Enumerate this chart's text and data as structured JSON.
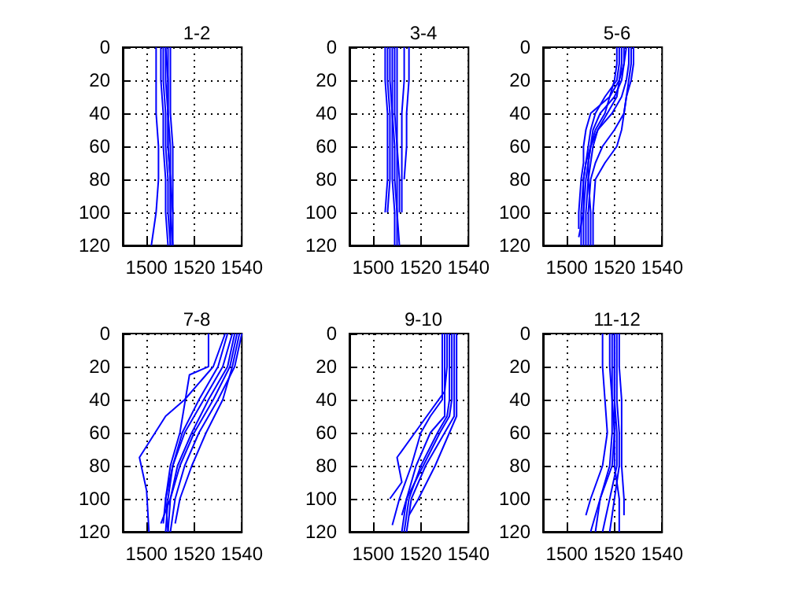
{
  "chart_data": [
    {
      "type": "line",
      "title": "1-2",
      "xlim": [
        1490,
        1540
      ],
      "ylim": [
        120,
        0
      ],
      "xticks": [
        1500,
        1520,
        1540
      ],
      "yticks": [
        0,
        20,
        40,
        60,
        80,
        100,
        120
      ],
      "grid": true,
      "series": [
        {
          "color": "#0000ff",
          "x": [
            1507,
            1507,
            1508,
            1508,
            1509,
            1509,
            1510
          ],
          "values": [
            0,
            20,
            40,
            60,
            80,
            100,
            120
          ]
        },
        {
          "color": "#0000ff",
          "x": [
            1508,
            1508,
            1509,
            1509,
            1510,
            1510,
            1511
          ],
          "values": [
            0,
            20,
            40,
            60,
            80,
            100,
            120
          ]
        },
        {
          "color": "#0000ff",
          "x": [
            1509,
            1509,
            1509,
            1510,
            1510,
            1511,
            1511
          ],
          "values": [
            0,
            20,
            40,
            60,
            80,
            100,
            120
          ]
        },
        {
          "color": "#0000ff",
          "x": [
            1506,
            1506,
            1507,
            1507,
            1508,
            1508,
            1509
          ],
          "values": [
            0,
            20,
            40,
            60,
            80,
            100,
            120
          ]
        },
        {
          "color": "#0000ff",
          "x": [
            1510,
            1510,
            1510,
            1511,
            1511,
            1511
          ],
          "values": [
            0,
            20,
            40,
            60,
            80,
            100
          ]
        },
        {
          "color": "#0000ff",
          "x": [
            1504,
            1504,
            1504,
            1505,
            1505,
            1504,
            1502
          ],
          "values": [
            0,
            20,
            40,
            60,
            80,
            100,
            120
          ]
        },
        {
          "color": "#0000ff",
          "x": [
            1508,
            1509,
            1509,
            1509,
            1510,
            1510,
            1510
          ],
          "values": [
            0,
            20,
            40,
            60,
            80,
            100,
            120
          ]
        }
      ]
    },
    {
      "type": "line",
      "title": "3-4",
      "xlim": [
        1490,
        1540
      ],
      "ylim": [
        120,
        0
      ],
      "xticks": [
        1500,
        1520,
        1540
      ],
      "yticks": [
        0,
        20,
        40,
        60,
        80,
        100,
        120
      ],
      "grid": true,
      "series": [
        {
          "color": "#0000ff",
          "x": [
            1506,
            1506,
            1507,
            1507,
            1507,
            1506
          ],
          "values": [
            0,
            20,
            40,
            60,
            80,
            100
          ]
        },
        {
          "color": "#0000ff",
          "x": [
            1507,
            1507,
            1508,
            1508,
            1508,
            1509,
            1509
          ],
          "values": [
            0,
            20,
            40,
            60,
            80,
            100,
            120
          ]
        },
        {
          "color": "#0000ff",
          "x": [
            1508,
            1508,
            1508,
            1509,
            1509,
            1510,
            1510
          ],
          "values": [
            0,
            20,
            40,
            60,
            80,
            100,
            120
          ]
        },
        {
          "color": "#0000ff",
          "x": [
            1509,
            1509,
            1509,
            1510,
            1510,
            1510,
            1511
          ],
          "values": [
            0,
            20,
            40,
            60,
            80,
            100,
            120
          ]
        },
        {
          "color": "#0000ff",
          "x": [
            1510,
            1510,
            1510,
            1510,
            1511,
            1511
          ],
          "values": [
            0,
            20,
            40,
            60,
            80,
            100
          ]
        },
        {
          "color": "#0000ff",
          "x": [
            1515,
            1515,
            1514,
            1514,
            1513
          ],
          "values": [
            0,
            20,
            40,
            60,
            80
          ]
        },
        {
          "color": "#0000ff",
          "x": [
            1513,
            1513,
            1512,
            1512,
            1512,
            1512
          ],
          "values": [
            0,
            20,
            40,
            60,
            80,
            100
          ]
        },
        {
          "color": "#0000ff",
          "x": [
            1505,
            1505,
            1506,
            1506,
            1506,
            1505
          ],
          "values": [
            0,
            20,
            40,
            60,
            80,
            100
          ]
        }
      ]
    },
    {
      "type": "line",
      "title": "5-6",
      "xlim": [
        1490,
        1540
      ],
      "ylim": [
        120,
        0
      ],
      "xticks": [
        1500,
        1520,
        1540
      ],
      "yticks": [
        0,
        20,
        40,
        60,
        80,
        100,
        120
      ],
      "grid": true,
      "series": [
        {
          "color": "#0000ff",
          "x": [
            1522,
            1522,
            1521,
            1516,
            1512,
            1510,
            1509,
            1508,
            1507,
            1506,
            1506
          ],
          "values": [
            0,
            10,
            20,
            30,
            40,
            50,
            60,
            70,
            80,
            100,
            120
          ]
        },
        {
          "color": "#0000ff",
          "x": [
            1524,
            1524,
            1523,
            1520,
            1514,
            1511,
            1510,
            1509,
            1508,
            1507,
            1507
          ],
          "values": [
            0,
            10,
            20,
            30,
            40,
            50,
            60,
            70,
            80,
            100,
            120
          ]
        },
        {
          "color": "#0000ff",
          "x": [
            1526,
            1526,
            1525,
            1523,
            1519,
            1513,
            1511,
            1510,
            1509,
            1508,
            1508
          ],
          "values": [
            0,
            10,
            20,
            30,
            40,
            50,
            60,
            70,
            80,
            100,
            120
          ]
        },
        {
          "color": "#0000ff",
          "x": [
            1528,
            1528,
            1527,
            1525,
            1524,
            1520,
            1515,
            1512,
            1510,
            1509,
            1509
          ],
          "values": [
            0,
            10,
            20,
            30,
            40,
            50,
            60,
            70,
            80,
            100,
            120
          ]
        },
        {
          "color": "#0000ff",
          "x": [
            1527,
            1527,
            1526,
            1525,
            1524,
            1523,
            1521,
            1516,
            1512,
            1511,
            1511
          ],
          "values": [
            0,
            10,
            20,
            30,
            40,
            50,
            60,
            70,
            80,
            100,
            120
          ]
        },
        {
          "color": "#0000ff",
          "x": [
            1521,
            1521,
            1520,
            1518,
            1510,
            1508,
            1507,
            1507,
            1506,
            1505,
            1505
          ],
          "values": [
            0,
            10,
            20,
            30,
            40,
            50,
            60,
            70,
            80,
            100,
            110
          ]
        },
        {
          "color": "#0000ff",
          "x": [
            1525,
            1524,
            1522,
            1518,
            1516,
            1512,
            1510,
            1509,
            1509,
            1510,
            1510
          ],
          "values": [
            0,
            10,
            20,
            30,
            40,
            50,
            60,
            70,
            80,
            100,
            120
          ]
        },
        {
          "color": "#0000ff",
          "x": [
            1523,
            1523,
            1522,
            1521,
            1517,
            1513,
            1510,
            1508,
            1507,
            1507,
            1505
          ],
          "values": [
            0,
            10,
            20,
            30,
            40,
            50,
            60,
            70,
            80,
            100,
            115
          ]
        }
      ]
    },
    {
      "type": "line",
      "title": "7-8",
      "xlim": [
        1490,
        1540
      ],
      "ylim": [
        120,
        0
      ],
      "xticks": [
        1500,
        1520,
        1540
      ],
      "yticks": [
        0,
        20,
        40,
        60,
        80,
        100,
        120
      ],
      "grid": true,
      "series": [
        {
          "color": "#0000ff",
          "x": [
            1538,
            1535,
            1528,
            1520,
            1514,
            1510,
            1509
          ],
          "values": [
            0,
            20,
            40,
            60,
            80,
            100,
            120
          ]
        },
        {
          "color": "#0000ff",
          "x": [
            1540,
            1537,
            1530,
            1522,
            1516,
            1512,
            1510
          ],
          "values": [
            0,
            20,
            40,
            60,
            80,
            100,
            120
          ]
        },
        {
          "color": "#0000ff",
          "x": [
            1536,
            1532,
            1524,
            1516,
            1511,
            1509,
            1508
          ],
          "values": [
            0,
            20,
            40,
            60,
            80,
            100,
            120
          ]
        },
        {
          "color": "#0000ff",
          "x": [
            1534,
            1530,
            1522,
            1515,
            1511,
            1508,
            1507
          ],
          "values": [
            0,
            20,
            40,
            60,
            80,
            100,
            115
          ]
        },
        {
          "color": "#0000ff",
          "x": [
            1539,
            1536,
            1532,
            1525,
            1519,
            1514,
            1512
          ],
          "values": [
            0,
            20,
            40,
            60,
            80,
            100,
            115
          ]
        },
        {
          "color": "#0000ff",
          "x": [
            1526,
            1526,
            1518,
            1514,
            1510,
            1508,
            1509
          ],
          "values": [
            0,
            20,
            25,
            60,
            80,
            100,
            120
          ]
        },
        {
          "color": "#0000ff",
          "x": [
            1533,
            1528,
            1516,
            1508,
            1497,
            1500,
            1501
          ],
          "values": [
            0,
            20,
            40,
            50,
            75,
            95,
            120
          ]
        },
        {
          "color": "#0000ff",
          "x": [
            1537,
            1534,
            1526,
            1519,
            1513,
            1510,
            1506
          ],
          "values": [
            0,
            20,
            40,
            60,
            80,
            100,
            115
          ]
        }
      ]
    },
    {
      "type": "line",
      "title": "9-10",
      "xlim": [
        1490,
        1540
      ],
      "ylim": [
        120,
        0
      ],
      "xticks": [
        1500,
        1520,
        1540
      ],
      "yticks": [
        0,
        20,
        40,
        60,
        80,
        100,
        120
      ],
      "grid": true,
      "series": [
        {
          "color": "#0000ff",
          "x": [
            1530,
            1530,
            1530,
            1530,
            1524,
            1518,
            1514,
            1512
          ],
          "values": [
            0,
            20,
            40,
            50,
            60,
            80,
            100,
            120
          ]
        },
        {
          "color": "#0000ff",
          "x": [
            1532,
            1532,
            1532,
            1531,
            1527,
            1520,
            1515,
            1513
          ],
          "values": [
            0,
            20,
            40,
            50,
            60,
            80,
            100,
            120
          ]
        },
        {
          "color": "#0000ff",
          "x": [
            1534,
            1534,
            1534,
            1534,
            1530,
            1522,
            1516,
            1514
          ],
          "values": [
            0,
            20,
            40,
            50,
            60,
            80,
            100,
            120
          ]
        },
        {
          "color": "#0000ff",
          "x": [
            1535,
            1535,
            1535,
            1535,
            1532,
            1526,
            1519,
            1515
          ],
          "values": [
            0,
            20,
            40,
            50,
            60,
            80,
            100,
            110
          ]
        },
        {
          "color": "#0000ff",
          "x": [
            1529,
            1529,
            1529,
            1524,
            1520,
            1516,
            1511,
            1508
          ],
          "values": [
            0,
            20,
            40,
            50,
            60,
            80,
            100,
            116
          ]
        },
        {
          "color": "#0000ff",
          "x": [
            1531,
            1531,
            1530,
            1520,
            1510,
            1512,
            1507
          ],
          "values": [
            0,
            20,
            35,
            55,
            75,
            90,
            100
          ]
        },
        {
          "color": "#0000ff",
          "x": [
            1533,
            1533,
            1533,
            1532,
            1528,
            1521,
            1514,
            1512
          ],
          "values": [
            0,
            20,
            40,
            50,
            60,
            80,
            100,
            110
          ]
        }
      ]
    },
    {
      "type": "line",
      "title": "11-12",
      "xlim": [
        1490,
        1540
      ],
      "ylim": [
        120,
        0
      ],
      "xticks": [
        1500,
        1520,
        1540
      ],
      "yticks": [
        0,
        20,
        40,
        60,
        80,
        100,
        120
      ],
      "grid": true,
      "series": [
        {
          "color": "#0000ff",
          "x": [
            1520,
            1520,
            1520,
            1521,
            1521,
            1518,
            1515
          ],
          "values": [
            0,
            20,
            40,
            60,
            80,
            100,
            120
          ]
        },
        {
          "color": "#0000ff",
          "x": [
            1519,
            1519,
            1519,
            1520,
            1519,
            1514,
            1512
          ],
          "values": [
            0,
            20,
            40,
            60,
            80,
            100,
            120
          ]
        },
        {
          "color": "#0000ff",
          "x": [
            1521,
            1521,
            1521,
            1522,
            1522,
            1520,
            1518
          ],
          "values": [
            0,
            20,
            40,
            60,
            80,
            100,
            120
          ]
        },
        {
          "color": "#0000ff",
          "x": [
            1522,
            1522,
            1523,
            1523,
            1523,
            1524,
            1524
          ],
          "values": [
            0,
            20,
            40,
            60,
            80,
            100,
            110
          ]
        },
        {
          "color": "#0000ff",
          "x": [
            1515,
            1515,
            1516,
            1517,
            1515,
            1510,
            1508
          ],
          "values": [
            0,
            20,
            40,
            60,
            80,
            100,
            110
          ]
        },
        {
          "color": "#0000ff",
          "x": [
            1520,
            1520,
            1520,
            1520,
            1520,
            1522,
            1522
          ],
          "values": [
            0,
            20,
            40,
            60,
            80,
            100,
            120
          ]
        },
        {
          "color": "#0000ff",
          "x": [
            1518,
            1518,
            1519,
            1519,
            1518,
            1514,
            1510
          ],
          "values": [
            0,
            20,
            40,
            60,
            80,
            100,
            120
          ]
        }
      ]
    }
  ]
}
